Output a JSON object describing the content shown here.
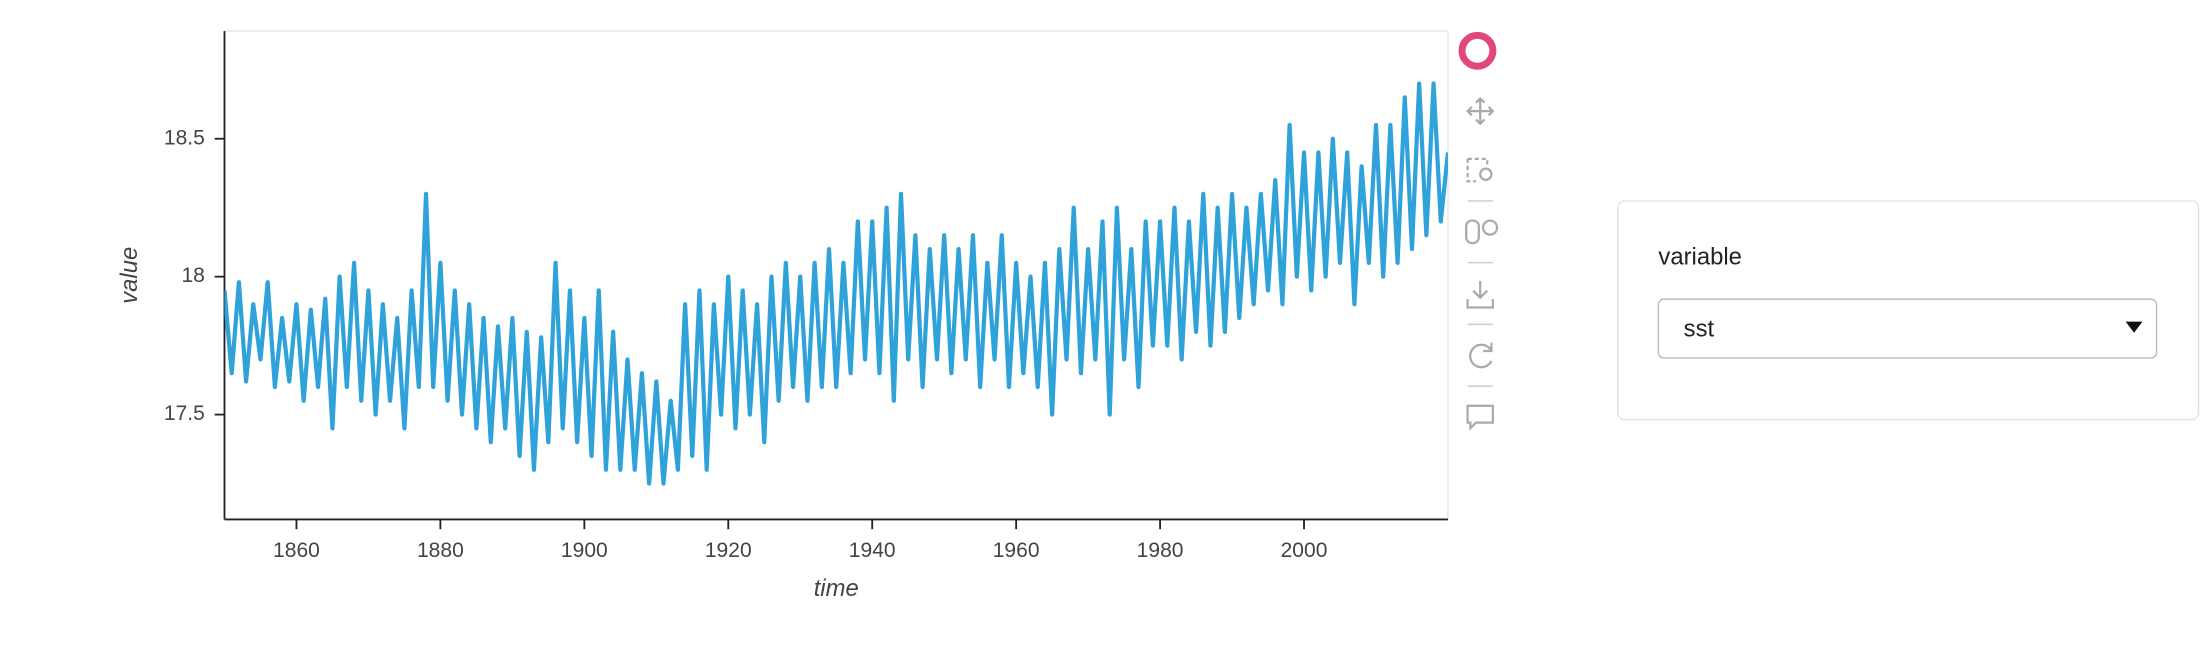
{
  "chart_data": {
    "type": "line",
    "x_label": "time",
    "y_label": "value",
    "x": [
      1850,
      1851,
      1852,
      1853,
      1854,
      1855,
      1856,
      1857,
      1858,
      1859,
      1860,
      1861,
      1862,
      1863,
      1864,
      1865,
      1866,
      1867,
      1868,
      1869,
      1870,
      1871,
      1872,
      1873,
      1874,
      1875,
      1876,
      1877,
      1878,
      1879,
      1880,
      1881,
      1882,
      1883,
      1884,
      1885,
      1886,
      1887,
      1888,
      1889,
      1890,
      1891,
      1892,
      1893,
      1894,
      1895,
      1896,
      1897,
      1898,
      1899,
      1900,
      1901,
      1902,
      1903,
      1904,
      1905,
      1906,
      1907,
      1908,
      1909,
      1910,
      1911,
      1912,
      1913,
      1914,
      1915,
      1916,
      1917,
      1918,
      1919,
      1920,
      1921,
      1922,
      1923,
      1924,
      1925,
      1926,
      1927,
      1928,
      1929,
      1930,
      1931,
      1932,
      1933,
      1934,
      1935,
      1936,
      1937,
      1938,
      1939,
      1940,
      1941,
      1942,
      1943,
      1944,
      1945,
      1946,
      1947,
      1948,
      1949,
      1950,
      1951,
      1952,
      1953,
      1954,
      1955,
      1956,
      1957,
      1958,
      1959,
      1960,
      1961,
      1962,
      1963,
      1964,
      1965,
      1966,
      1967,
      1968,
      1969,
      1970,
      1971,
      1972,
      1973,
      1974,
      1975,
      1976,
      1977,
      1978,
      1979,
      1980,
      1981,
      1982,
      1983,
      1984,
      1985,
      1986,
      1987,
      1988,
      1989,
      1990,
      1991,
      1992,
      1993,
      1994,
      1995,
      1996,
      1997,
      1998,
      1999,
      2000,
      2001,
      2002,
      2003,
      2004,
      2005,
      2006,
      2007,
      2008,
      2009,
      2010,
      2011,
      2012,
      2013,
      2014,
      2015,
      2016,
      2017,
      2018,
      2019,
      2020
    ],
    "series": [
      {
        "name": "sst",
        "color": "#30a2da",
        "values": [
          17.95,
          17.65,
          17.98,
          17.62,
          17.9,
          17.7,
          17.98,
          17.6,
          17.85,
          17.62,
          17.9,
          17.55,
          17.88,
          17.6,
          17.92,
          17.45,
          18.0,
          17.6,
          18.05,
          17.55,
          17.95,
          17.5,
          17.9,
          17.55,
          17.85,
          17.45,
          17.95,
          17.6,
          18.3,
          17.6,
          18.05,
          17.55,
          17.95,
          17.5,
          17.9,
          17.45,
          17.85,
          17.4,
          17.82,
          17.45,
          17.85,
          17.35,
          17.8,
          17.3,
          17.78,
          17.4,
          18.05,
          17.45,
          17.95,
          17.4,
          17.85,
          17.35,
          17.95,
          17.3,
          17.8,
          17.3,
          17.7,
          17.3,
          17.65,
          17.25,
          17.62,
          17.25,
          17.55,
          17.3,
          17.9,
          17.35,
          17.95,
          17.3,
          17.9,
          17.5,
          18.0,
          17.45,
          17.95,
          17.5,
          17.9,
          17.4,
          18.0,
          17.55,
          18.05,
          17.6,
          18.0,
          17.55,
          18.05,
          17.6,
          18.1,
          17.6,
          18.05,
          17.65,
          18.2,
          17.7,
          18.2,
          17.65,
          18.25,
          17.55,
          18.3,
          17.7,
          18.15,
          17.6,
          18.1,
          17.7,
          18.15,
          17.65,
          18.1,
          17.7,
          18.15,
          17.6,
          18.05,
          17.7,
          18.15,
          17.6,
          18.05,
          17.65,
          18.0,
          17.6,
          18.05,
          17.5,
          18.1,
          17.7,
          18.25,
          17.65,
          18.1,
          17.7,
          18.2,
          17.5,
          18.25,
          17.7,
          18.1,
          17.6,
          18.2,
          17.75,
          18.2,
          17.75,
          18.25,
          17.7,
          18.2,
          17.8,
          18.3,
          17.75,
          18.25,
          17.8,
          18.3,
          17.85,
          18.25,
          17.9,
          18.3,
          17.95,
          18.35,
          17.9,
          18.55,
          18.0,
          18.45,
          17.95,
          18.45,
          18.0,
          18.5,
          18.05,
          18.45,
          17.9,
          18.4,
          18.05,
          18.55,
          18.0,
          18.55,
          18.05,
          18.65,
          18.1,
          18.7,
          18.15,
          18.7,
          18.2,
          18.45
        ]
      }
    ],
    "xlim": [
      1850,
      2020
    ],
    "xticks": [
      1860,
      1880,
      1900,
      1920,
      1940,
      1960,
      1980,
      2000
    ],
    "ylim": [
      17.12,
      18.89
    ],
    "yticks": [
      17.5,
      18,
      {
        "value": 18.5,
        "label": "18.5"
      }
    ],
    "grid": false
  },
  "widget": {
    "label": "variable",
    "value": "sst"
  }
}
